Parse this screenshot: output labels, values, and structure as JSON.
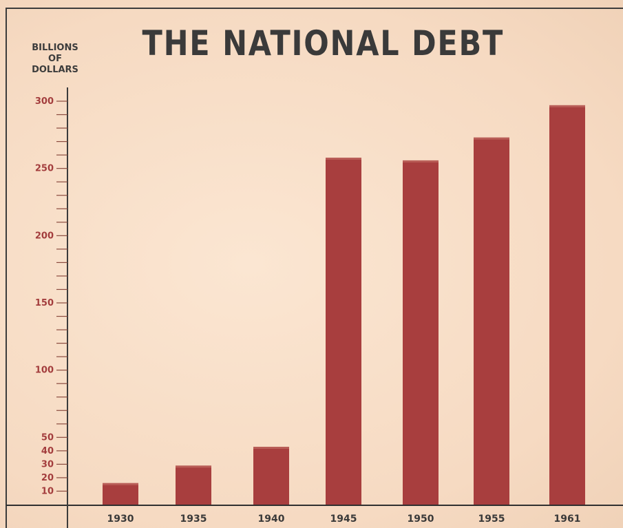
{
  "chart_data": {
    "type": "bar",
    "title": "THE NATIONAL DEBT",
    "ylabel_lines": [
      "BILLIONS",
      "OF",
      "DOLLARS"
    ],
    "categories": [
      "1930",
      "1935",
      "1940",
      "1945",
      "1950",
      "1955",
      "1961"
    ],
    "values": [
      16,
      29,
      43,
      258,
      256,
      273,
      297
    ],
    "ylim": [
      0,
      300
    ],
    "y_tick_labels": [
      "10",
      "20",
      "30",
      "40",
      "50",
      "100",
      "150",
      "200",
      "250",
      "300"
    ],
    "y_tick_values": [
      10,
      20,
      30,
      40,
      50,
      100,
      150,
      200,
      250,
      300
    ],
    "y_minor_step": 10,
    "grid": false,
    "colors": {
      "bar": "#a83e3e",
      "tick_label": "#a33d3d",
      "text": "#3a3a3a",
      "background": "#f7dcc5"
    }
  }
}
